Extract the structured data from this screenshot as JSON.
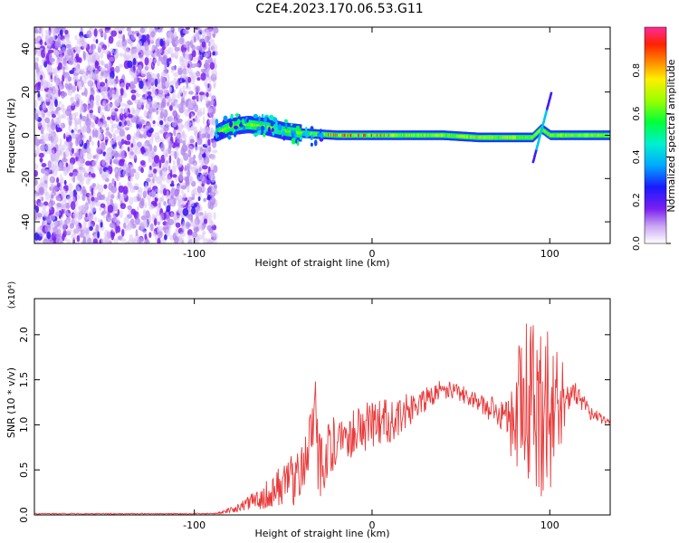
{
  "title": "C2E4.2023.170.06.53.G11",
  "chart_data": [
    {
      "type": "heatmap",
      "title": "C2E4.2023.170.06.53.G11",
      "xlabel": "Height of straight line (km)",
      "ylabel": "Frequency (Hz)",
      "xlim": [
        -190,
        134
      ],
      "ylim": [
        -50,
        50
      ],
      "xticks": [
        -100,
        0,
        100
      ],
      "yticks": [
        -40,
        -20,
        0,
        20,
        40
      ],
      "colorbar": {
        "label": "Normalized spectral amplitude",
        "range": [
          0,
          1
        ],
        "ticks": [
          "0.0",
          "0.2",
          "0.4",
          "0.6",
          "0.8"
        ]
      },
      "ridge": {
        "x": [
          -88,
          -80,
          -70,
          -60,
          -50,
          -40,
          -30,
          -20,
          -10,
          0,
          20,
          40,
          60,
          80,
          90,
          95,
          100,
          110,
          134
        ],
        "y": [
          1,
          4,
          5,
          4,
          2,
          1,
          0.5,
          0,
          0,
          0,
          0,
          0,
          -1,
          -1,
          -1,
          3,
          0,
          0,
          0
        ]
      },
      "noise_region_x": [
        -190,
        -88
      ]
    },
    {
      "type": "line",
      "xlabel": "Height of straight line (km)",
      "ylabel": "SNR (10 * v/v)",
      "y_multiplier": "(x10⁴)",
      "xlim": [
        -190,
        134
      ],
      "ylim": [
        0,
        2.4
      ],
      "xticks": [
        -100,
        0,
        100
      ],
      "yticks": [
        0.0,
        0.5,
        1.0,
        1.5,
        2.0
      ],
      "series": [
        {
          "color": "#e83a3a",
          "x": [
            -190,
            -150,
            -110,
            -90,
            -80,
            -70,
            -60,
            -50,
            -40,
            -35,
            -32,
            -30,
            -25,
            -20,
            -10,
            0,
            10,
            20,
            30,
            40,
            50,
            60,
            70,
            75,
            80,
            85,
            90,
            95,
            100,
            105,
            110,
            115,
            120,
            125,
            130,
            134
          ],
          "y": [
            0.0,
            0.0,
            0.0,
            0.01,
            0.05,
            0.12,
            0.22,
            0.35,
            0.45,
            0.95,
            1.45,
            0.5,
            0.7,
            0.85,
            0.95,
            1.0,
            1.05,
            1.15,
            1.3,
            1.4,
            1.35,
            1.25,
            1.15,
            1.1,
            1.1,
            1.3,
            1.2,
            1.1,
            1.15,
            1.25,
            1.3,
            1.35,
            1.2,
            1.1,
            1.05,
            1.0
          ],
          "variance": [
            0,
            0,
            0,
            0.005,
            0.03,
            0.08,
            0.15,
            0.25,
            0.35,
            0.45,
            0.5,
            0.4,
            0.35,
            0.3,
            0.3,
            0.25,
            0.25,
            0.2,
            0.15,
            0.1,
            0.1,
            0.12,
            0.15,
            0.2,
            0.6,
            0.85,
            1.0,
            1.05,
            0.9,
            0.6,
            0.2,
            0.12,
            0.1,
            0.08,
            0.06,
            0.05
          ]
        }
      ]
    }
  ]
}
